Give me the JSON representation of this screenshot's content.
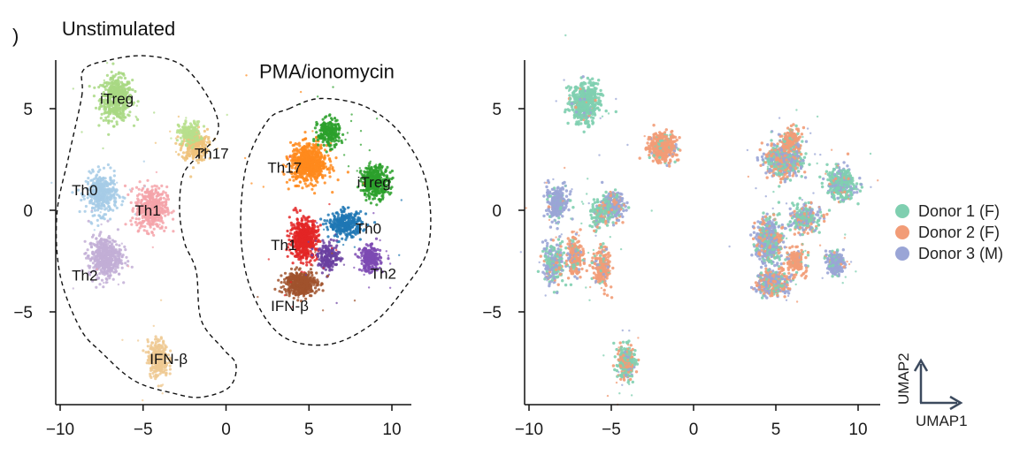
{
  "panel_letter": ")",
  "chart_data": [
    {
      "type": "scatter",
      "panel": "left",
      "title": "",
      "xlabel": "",
      "ylabel": "",
      "xlim": [
        -10.5,
        11.2
      ],
      "ylim": [
        -9.5,
        7.4
      ],
      "xticks": [
        -10,
        -5,
        0,
        5,
        10
      ],
      "yticks": [
        5,
        0,
        -5
      ],
      "xtick_labels": [
        "−10",
        "−5",
        "0",
        "5",
        "10"
      ],
      "ytick_labels": [
        "5",
        "0",
        "−5"
      ],
      "grid": false,
      "groups": [
        {
          "name": "Unstimulated",
          "label_x": -9.9,
          "label_y": 8.6,
          "outline": [
            [
              -8.7,
              5.6
            ],
            [
              -8.6,
              6.9
            ],
            [
              -7.0,
              7.4
            ],
            [
              -4.8,
              7.6
            ],
            [
              -2.6,
              7.1
            ],
            [
              -0.9,
              5.3
            ],
            [
              -0.5,
              3.8
            ],
            [
              -1.8,
              2.6
            ],
            [
              -2.6,
              1.7
            ],
            [
              -2.8,
              0.0
            ],
            [
              -2.5,
              -1.6
            ],
            [
              -1.8,
              -3.0
            ],
            [
              -1.5,
              -5.4
            ],
            [
              -0.2,
              -6.8
            ],
            [
              0.6,
              -7.6
            ],
            [
              0.2,
              -8.7
            ],
            [
              -1.5,
              -9.2
            ],
            [
              -3.2,
              -9.0
            ],
            [
              -5.5,
              -8.4
            ],
            [
              -7.5,
              -7.0
            ],
            [
              -8.8,
              -5.8
            ],
            [
              -10.0,
              -3.2
            ],
            [
              -10.2,
              -0.2
            ],
            [
              -9.5,
              2.6
            ],
            [
              -8.7,
              5.6
            ]
          ]
        },
        {
          "name": "PMA/ionomycin",
          "label_x": 2.0,
          "label_y": 6.5,
          "outline": [
            [
              3.8,
              5.0
            ],
            [
              5.7,
              5.5
            ],
            [
              8.4,
              5.1
            ],
            [
              10.6,
              3.7
            ],
            [
              12.1,
              1.3
            ],
            [
              12.2,
              -1.8
            ],
            [
              10.7,
              -3.9
            ],
            [
              8.8,
              -5.6
            ],
            [
              6.2,
              -6.6
            ],
            [
              3.4,
              -6.2
            ],
            [
              1.6,
              -4.1
            ],
            [
              0.9,
              -1.3
            ],
            [
              1.2,
              2.1
            ],
            [
              2.5,
              4.4
            ],
            [
              3.8,
              5.0
            ]
          ]
        }
      ],
      "clusters": [
        {
          "name": "iTreg",
          "color": "#a8d883",
          "cx": -6.6,
          "cy": 5.5,
          "sx": 0.85,
          "sy": 0.95,
          "n": 520,
          "label_x": -7.6,
          "label_y": 5.5
        },
        {
          "name": "Th17",
          "color": "#efc27a",
          "cx": -1.9,
          "cy": 3.2,
          "sx": 0.7,
          "sy": 0.7,
          "n": 300,
          "label_x": -1.9,
          "label_y": 2.8
        },
        {
          "name": "Th17",
          "color": "#b7df8c",
          "cx": -2.2,
          "cy": 3.8,
          "sx": 0.6,
          "sy": 0.5,
          "n": 160,
          "label_x": null,
          "label_y": null
        },
        {
          "name": "Th0",
          "color": "#a6cbe6",
          "cx": -7.5,
          "cy": 0.8,
          "sx": 0.85,
          "sy": 0.9,
          "n": 380,
          "label_x": -9.3,
          "label_y": 1.0
        },
        {
          "name": "Th1",
          "color": "#f4a3a9",
          "cx": -4.5,
          "cy": 0.1,
          "sx": 0.85,
          "sy": 0.95,
          "n": 450,
          "label_x": -5.5,
          "label_y": 0.0
        },
        {
          "name": "Th2",
          "color": "#c2aed6",
          "cx": -7.3,
          "cy": -2.3,
          "sx": 0.9,
          "sy": 0.9,
          "n": 480,
          "label_x": -9.3,
          "label_y": -3.2
        },
        {
          "name": "IFN-β",
          "color": "#efc992",
          "cx": -4.1,
          "cy": -7.3,
          "sx": 0.55,
          "sy": 0.8,
          "n": 320,
          "label_x": -4.6,
          "label_y": -7.3
        },
        {
          "name": "Th17",
          "color": "#ff8a1c",
          "cx": 5.0,
          "cy": 2.3,
          "sx": 1.0,
          "sy": 0.85,
          "n": 700,
          "label_x": 2.5,
          "label_y": 2.1
        },
        {
          "name": "Th17",
          "color": "#2ca02c",
          "cx": 6.2,
          "cy": 3.8,
          "sx": 0.6,
          "sy": 0.6,
          "n": 240,
          "label_x": null,
          "label_y": null
        },
        {
          "name": "iTreg",
          "color": "#2ca02c",
          "cx": 9.0,
          "cy": 1.4,
          "sx": 0.75,
          "sy": 0.7,
          "n": 380,
          "label_x": 7.9,
          "label_y": 1.4
        },
        {
          "name": "Th1",
          "color": "#e32626",
          "cx": 4.7,
          "cy": -1.4,
          "sx": 0.75,
          "sy": 0.9,
          "n": 520,
          "label_x": 2.7,
          "label_y": -1.7
        },
        {
          "name": "Th0",
          "color": "#1f77b4",
          "cx": 7.2,
          "cy": -0.7,
          "sx": 0.9,
          "sy": 0.55,
          "n": 320,
          "label_x": 7.8,
          "label_y": -0.9
        },
        {
          "name": "Th2",
          "color": "#7c4ab3",
          "cx": 8.7,
          "cy": -2.4,
          "sx": 0.55,
          "sy": 0.55,
          "n": 260,
          "label_x": 8.7,
          "label_y": -3.1
        },
        {
          "name": "Th2",
          "color": "#6a3fa0",
          "cx": 6.2,
          "cy": -2.3,
          "sx": 0.6,
          "sy": 0.6,
          "n": 180,
          "label_x": null,
          "label_y": null
        },
        {
          "name": "IFN-β",
          "color": "#a0522d",
          "cx": 4.5,
          "cy": -3.6,
          "sx": 0.9,
          "sy": 0.55,
          "n": 420,
          "label_x": 2.7,
          "label_y": -4.7
        }
      ]
    },
    {
      "type": "scatter",
      "panel": "right",
      "title": "",
      "xlabel": "UMAP1",
      "ylabel": "UMAP2",
      "xlim": [
        -10.5,
        11.5
      ],
      "ylim": [
        -9.5,
        7.4
      ],
      "xticks": [
        -10,
        -5,
        0,
        5,
        10
      ],
      "yticks": [
        5,
        0,
        -5
      ],
      "xtick_labels": [
        "−10",
        "−5",
        "0",
        "5",
        "10"
      ],
      "ytick_labels": [
        "5",
        "0",
        "−5"
      ],
      "grid": false,
      "legend_position": "right",
      "series": [
        {
          "name": "Donor 1 (F)",
          "color": "#7fcfb0"
        },
        {
          "name": "Donor 2 (F)",
          "color": "#f29c77"
        },
        {
          "name": "Donor 3 (M)",
          "color": "#9aa5d6"
        }
      ],
      "clusters": [
        {
          "cx": -6.6,
          "cy": 5.3,
          "sx": 0.8,
          "sy": 0.9,
          "n": 480,
          "mix": [
            0.9,
            0.05,
            0.05
          ]
        },
        {
          "cx": -1.9,
          "cy": 3.1,
          "sx": 0.75,
          "sy": 0.65,
          "n": 380,
          "mix": [
            0.1,
            0.85,
            0.05
          ]
        },
        {
          "cx": -8.3,
          "cy": 0.4,
          "sx": 0.6,
          "sy": 0.7,
          "n": 260,
          "mix": [
            0.1,
            0.05,
            0.85
          ]
        },
        {
          "cx": -4.9,
          "cy": 0.2,
          "sx": 0.6,
          "sy": 0.6,
          "n": 220,
          "mix": [
            0.25,
            0.15,
            0.6
          ]
        },
        {
          "cx": -5.7,
          "cy": -0.2,
          "sx": 0.5,
          "sy": 0.6,
          "n": 140,
          "mix": [
            0.7,
            0.2,
            0.1
          ]
        },
        {
          "cx": -8.5,
          "cy": -2.6,
          "sx": 0.6,
          "sy": 0.85,
          "n": 260,
          "mix": [
            0.4,
            0.15,
            0.45
          ]
        },
        {
          "cx": -7.2,
          "cy": -2.3,
          "sx": 0.45,
          "sy": 0.9,
          "n": 200,
          "mix": [
            0.1,
            0.75,
            0.15
          ]
        },
        {
          "cx": -5.6,
          "cy": -2.8,
          "sx": 0.45,
          "sy": 0.9,
          "n": 200,
          "mix": [
            0.1,
            0.8,
            0.1
          ]
        },
        {
          "cx": -4.1,
          "cy": -7.5,
          "sx": 0.5,
          "sy": 0.7,
          "n": 280,
          "mix": [
            0.55,
            0.4,
            0.05
          ]
        },
        {
          "cx": 5.5,
          "cy": 2.5,
          "sx": 1.0,
          "sy": 0.8,
          "n": 520,
          "mix": [
            0.3,
            0.35,
            0.35
          ]
        },
        {
          "cx": 6.0,
          "cy": 3.5,
          "sx": 0.5,
          "sy": 0.5,
          "n": 140,
          "mix": [
            0.1,
            0.85,
            0.05
          ]
        },
        {
          "cx": 9.0,
          "cy": 1.3,
          "sx": 0.8,
          "sy": 0.7,
          "n": 360,
          "mix": [
            0.7,
            0.05,
            0.25
          ]
        },
        {
          "cx": 4.6,
          "cy": -1.5,
          "sx": 0.75,
          "sy": 1.0,
          "n": 460,
          "mix": [
            0.3,
            0.2,
            0.5
          ]
        },
        {
          "cx": 6.8,
          "cy": -0.4,
          "sx": 0.8,
          "sy": 0.6,
          "n": 260,
          "mix": [
            0.45,
            0.2,
            0.35
          ]
        },
        {
          "cx": 6.2,
          "cy": -2.5,
          "sx": 0.5,
          "sy": 0.6,
          "n": 160,
          "mix": [
            0.05,
            0.9,
            0.05
          ]
        },
        {
          "cx": 8.6,
          "cy": -2.6,
          "sx": 0.45,
          "sy": 0.55,
          "n": 200,
          "mix": [
            0.1,
            0.05,
            0.85
          ]
        },
        {
          "cx": 4.8,
          "cy": -3.6,
          "sx": 0.85,
          "sy": 0.55,
          "n": 340,
          "mix": [
            0.2,
            0.45,
            0.35
          ]
        }
      ]
    }
  ]
}
